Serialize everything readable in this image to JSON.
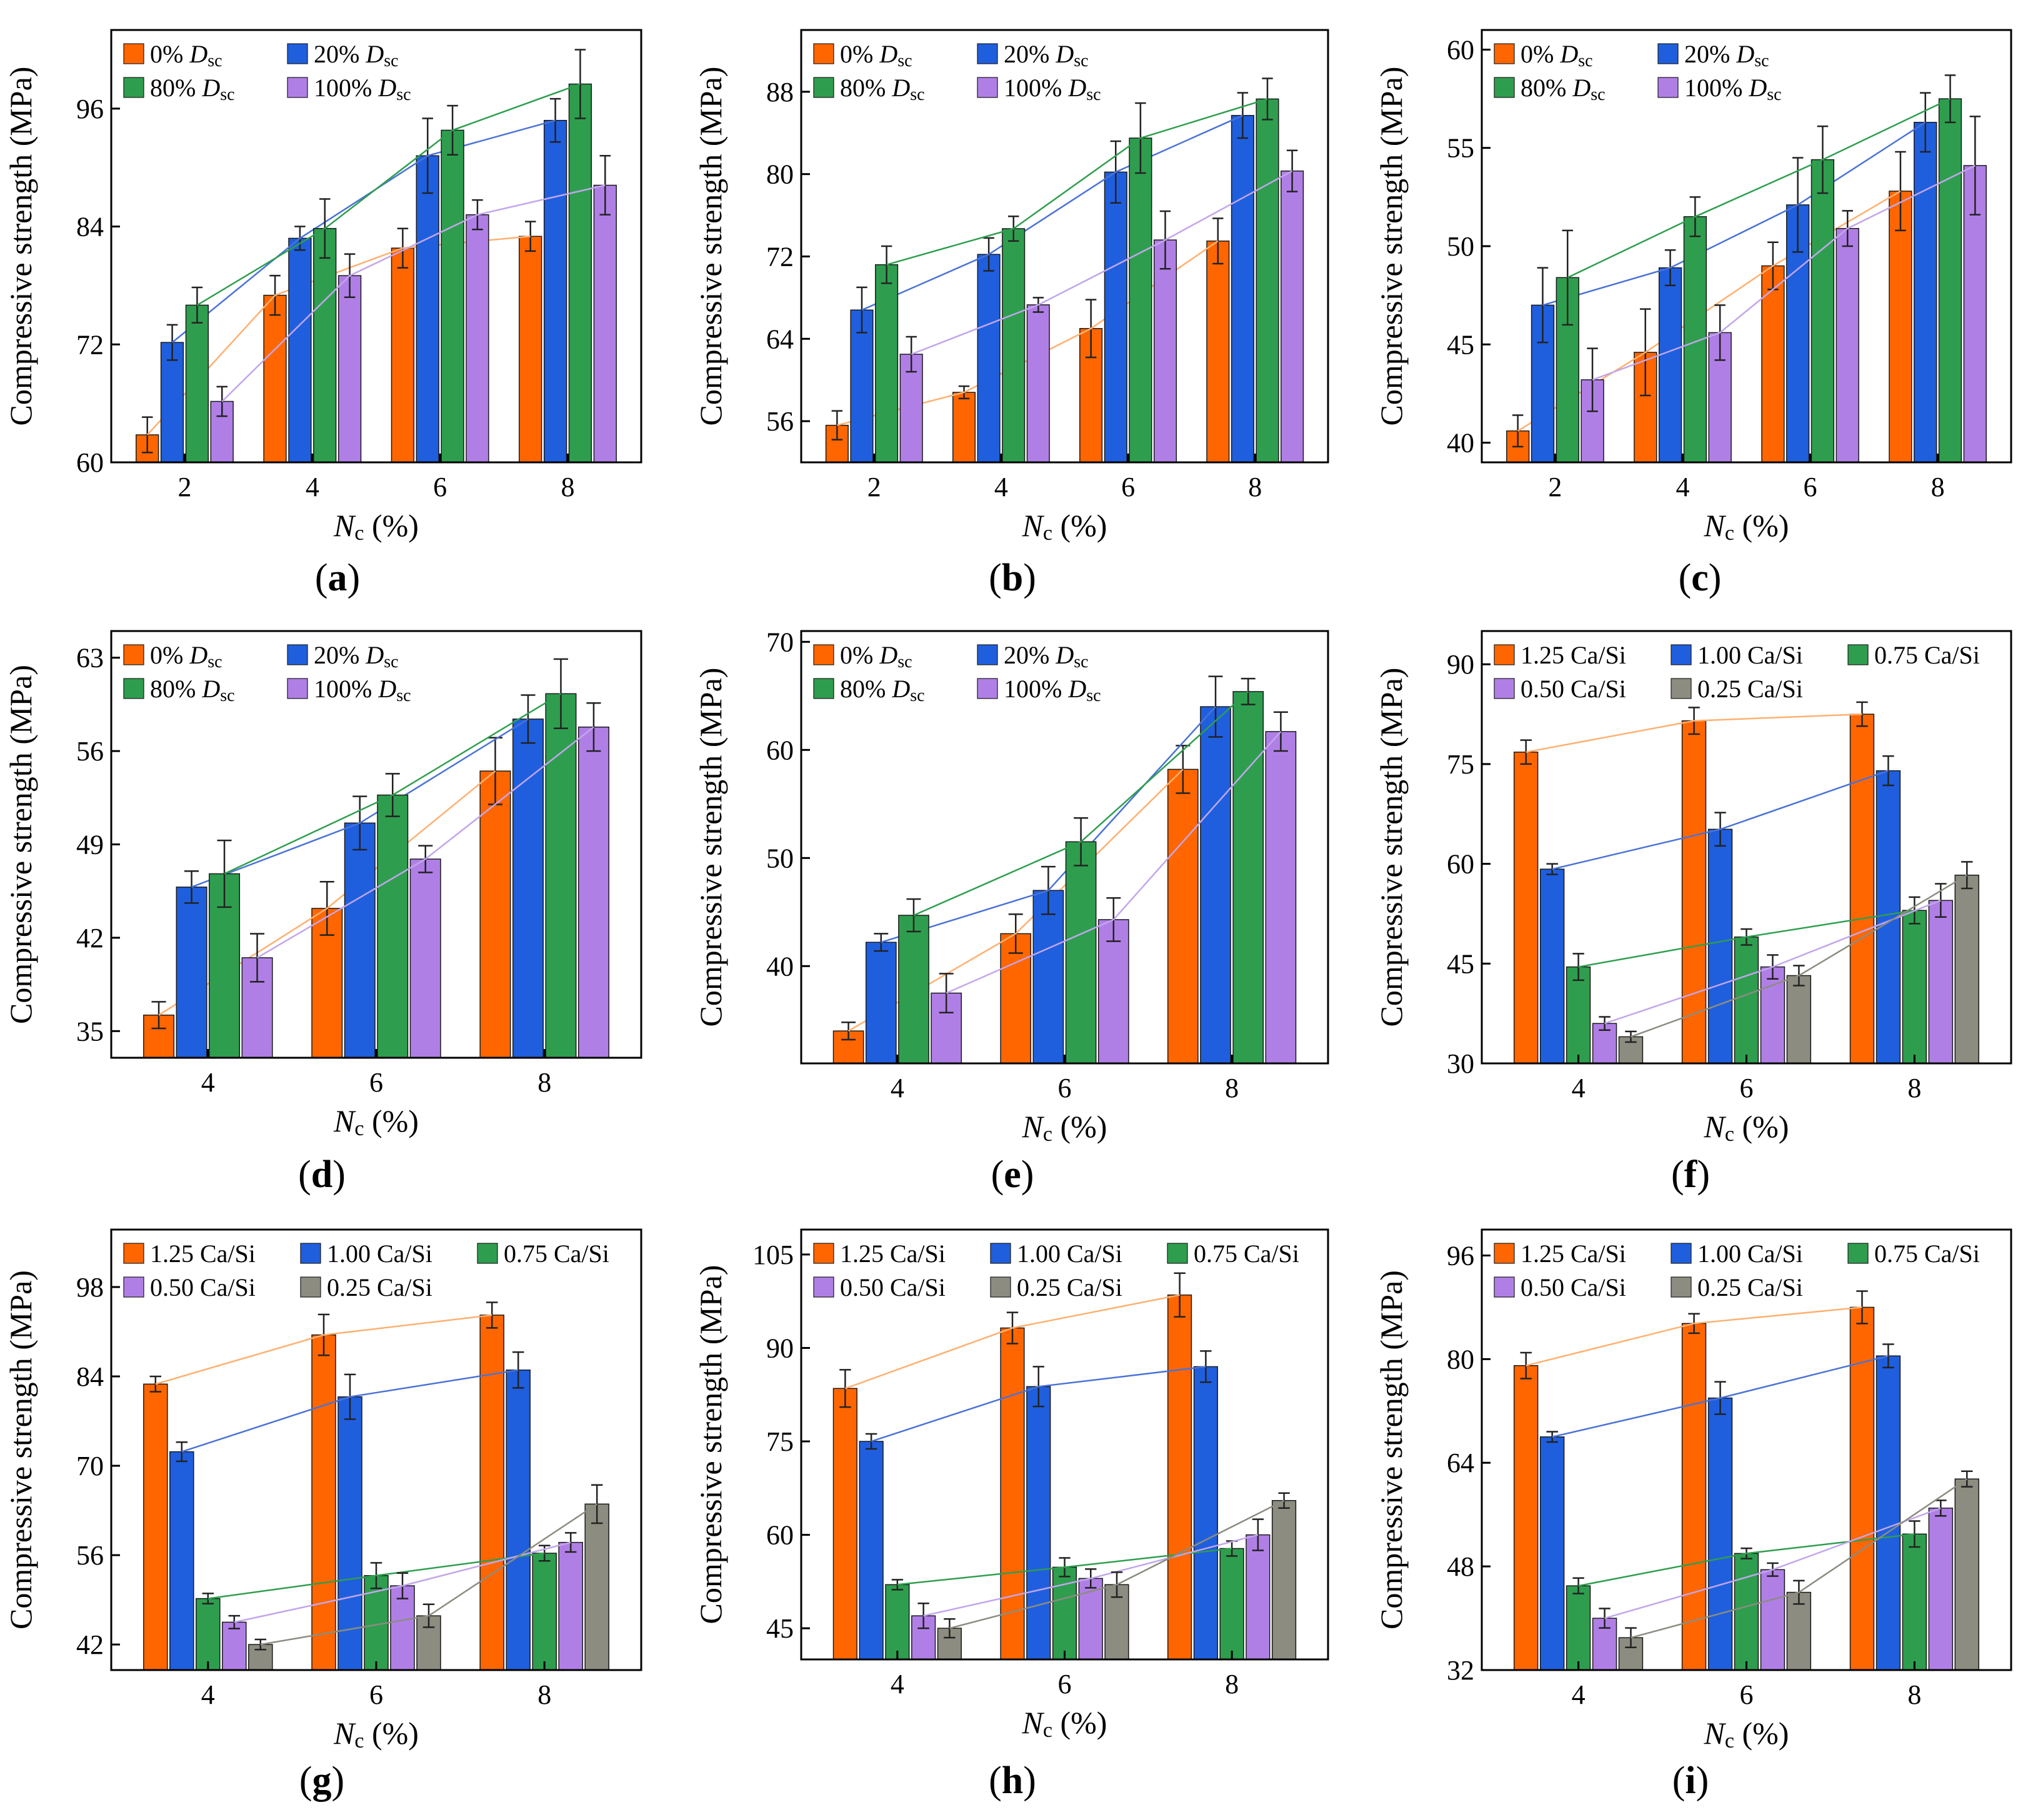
{
  "figure": {
    "colors": {
      "orange": "#ff6600",
      "blue": "#1f5fde",
      "green": "#2e9e4e",
      "purple": "#b07fe6",
      "gray": "#8c8c80",
      "line_orange": "#ffb070",
      "line_blue": "#4a72d6",
      "line_green": "#2e9e4e",
      "line_purple": "#c2a6ec",
      "line_gray": "#8c8c80"
    }
  },
  "chart_data": [
    {
      "panel_label": "(a)",
      "type": "bar",
      "ylabel": "Compressive strength (MPa)",
      "xlabel_main": "N",
      "xlabel_sub": "c",
      "xlabel_rest": " (%)",
      "categories": [
        "2",
        "4",
        "6",
        "8"
      ],
      "ylim": [
        60,
        104
      ],
      "yticks": [
        "60",
        "72",
        "84",
        "96"
      ],
      "legend_cols": 2,
      "series": [
        {
          "name": "0% D",
          "name_sub": "sc",
          "color_key": "orange",
          "line_key": "line_orange",
          "values": [
            62.8,
            77.0,
            81.8,
            83.0
          ],
          "errors": [
            1.8,
            2.0,
            2.0,
            1.5
          ]
        },
        {
          "name": "20% D",
          "name_sub": "sc",
          "color_key": "blue",
          "line_key": "line_blue",
          "values": [
            72.2,
            82.8,
            91.2,
            94.8
          ],
          "errors": [
            1.8,
            1.2,
            3.8,
            2.2
          ]
        },
        {
          "name": "80% D",
          "name_sub": "sc",
          "color_key": "green",
          "line_key": "line_green",
          "values": [
            76.0,
            83.8,
            93.8,
            98.5
          ],
          "errors": [
            1.8,
            3.0,
            2.5,
            3.5
          ]
        },
        {
          "name": "100% D",
          "name_sub": "sc",
          "color_key": "purple",
          "line_key": "line_purple",
          "values": [
            66.2,
            79.0,
            85.2,
            88.2
          ],
          "errors": [
            1.5,
            2.2,
            1.5,
            3.0
          ]
        }
      ]
    },
    {
      "panel_label": "(b)",
      "type": "bar",
      "ylabel": "Compressive strength (MPa)",
      "xlabel_main": "N",
      "xlabel_sub": "c",
      "xlabel_rest": " (%)",
      "categories": [
        "2",
        "4",
        "6",
        "8"
      ],
      "ylim": [
        52,
        94
      ],
      "yticks": [
        "56",
        "64",
        "72",
        "80",
        "88"
      ],
      "legend_cols": 2,
      "series": [
        {
          "name": "0% D",
          "name_sub": "sc",
          "color_key": "orange",
          "line_key": "line_orange",
          "values": [
            55.6,
            58.8,
            65.0,
            73.5
          ],
          "errors": [
            1.4,
            0.6,
            2.8,
            2.2
          ]
        },
        {
          "name": "20% D",
          "name_sub": "sc",
          "color_key": "blue",
          "line_key": "line_blue",
          "values": [
            66.8,
            72.2,
            80.2,
            85.7
          ],
          "errors": [
            2.2,
            1.6,
            3.0,
            2.2
          ]
        },
        {
          "name": "80% D",
          "name_sub": "sc",
          "color_key": "green",
          "line_key": "line_green",
          "values": [
            71.2,
            74.7,
            83.5,
            87.3
          ],
          "errors": [
            1.8,
            1.2,
            3.4,
            2.0
          ]
        },
        {
          "name": "100% D",
          "name_sub": "sc",
          "color_key": "purple",
          "line_key": "line_purple",
          "values": [
            62.5,
            67.3,
            73.6,
            80.3
          ],
          "errors": [
            1.7,
            0.7,
            2.8,
            2.0
          ]
        }
      ]
    },
    {
      "panel_label": "(c)",
      "type": "bar",
      "ylabel": "Compressive strength (MPa)",
      "xlabel_main": "N",
      "xlabel_sub": "c",
      "xlabel_rest": " (%)",
      "categories": [
        "2",
        "4",
        "6",
        "8"
      ],
      "ylim": [
        39,
        61
      ],
      "yticks": [
        "40",
        "45",
        "50",
        "55",
        "60"
      ],
      "legend_cols": 2,
      "series": [
        {
          "name": "0% D",
          "name_sub": "sc",
          "color_key": "orange",
          "line_key": "line_orange",
          "values": [
            40.6,
            44.6,
            49.0,
            52.8
          ],
          "errors": [
            0.8,
            2.2,
            1.2,
            2.0
          ]
        },
        {
          "name": "20% D",
          "name_sub": "sc",
          "color_key": "blue",
          "line_key": "line_blue",
          "values": [
            47.0,
            48.9,
            52.1,
            56.3
          ],
          "errors": [
            1.9,
            0.9,
            2.4,
            1.5
          ]
        },
        {
          "name": "80% D",
          "name_sub": "sc",
          "color_key": "green",
          "line_key": "line_green",
          "values": [
            48.4,
            51.5,
            54.4,
            57.5
          ],
          "errors": [
            2.4,
            1.0,
            1.7,
            1.2
          ]
        },
        {
          "name": "100% D",
          "name_sub": "sc",
          "color_key": "purple",
          "line_key": "line_purple",
          "values": [
            43.2,
            45.6,
            50.9,
            54.1
          ],
          "errors": [
            1.6,
            1.4,
            0.9,
            2.5
          ]
        }
      ]
    },
    {
      "panel_label": "(d)",
      "type": "bar",
      "ylabel": "Compressive strength (MPa)",
      "xlabel_main": "N",
      "xlabel_sub": "c",
      "xlabel_rest": " (%)",
      "categories": [
        "4",
        "6",
        "8"
      ],
      "ylim": [
        33,
        65
      ],
      "yticks": [
        "35",
        "42",
        "49",
        "56",
        "63"
      ],
      "legend_cols": 2,
      "series": [
        {
          "name": "0% D",
          "name_sub": "sc",
          "color_key": "orange",
          "line_key": "line_orange",
          "values": [
            36.2,
            44.2,
            54.5
          ],
          "errors": [
            1.0,
            2.0,
            2.5
          ]
        },
        {
          "name": "20% D",
          "name_sub": "sc",
          "color_key": "blue",
          "line_key": "line_blue",
          "values": [
            45.8,
            50.6,
            58.4
          ],
          "errors": [
            1.2,
            2.0,
            1.8
          ]
        },
        {
          "name": "80% D",
          "name_sub": "sc",
          "color_key": "green",
          "line_key": "line_green",
          "values": [
            46.8,
            52.7,
            60.3
          ],
          "errors": [
            2.5,
            1.6,
            2.6
          ]
        },
        {
          "name": "100% D",
          "name_sub": "sc",
          "color_key": "purple",
          "line_key": "line_purple",
          "values": [
            40.5,
            47.9,
            57.8
          ],
          "errors": [
            1.8,
            1.0,
            1.8
          ]
        }
      ]
    },
    {
      "panel_label": "(e)",
      "type": "bar",
      "ylabel": "Compressive strength (MPa)",
      "xlabel_main": "N",
      "xlabel_sub": "c",
      "xlabel_rest": " (%)",
      "categories": [
        "4",
        "6",
        "8"
      ],
      "ylim": [
        31,
        71
      ],
      "yticks": [
        "40",
        "50",
        "60",
        "70"
      ],
      "legend_cols": 2,
      "series": [
        {
          "name": "0% D",
          "name_sub": "sc",
          "color_key": "orange",
          "line_key": "line_orange",
          "values": [
            34.0,
            43.0,
            58.2
          ],
          "errors": [
            0.8,
            1.8,
            2.2
          ]
        },
        {
          "name": "20% D",
          "name_sub": "sc",
          "color_key": "blue",
          "line_key": "line_blue",
          "values": [
            42.2,
            47.0,
            64.0
          ],
          "errors": [
            0.8,
            2.2,
            2.8
          ]
        },
        {
          "name": "80% D",
          "name_sub": "sc",
          "color_key": "green",
          "line_key": "line_green",
          "values": [
            44.7,
            51.5,
            65.4
          ],
          "errors": [
            1.5,
            2.2,
            1.2
          ]
        },
        {
          "name": "100% D",
          "name_sub": "sc",
          "color_key": "purple",
          "line_key": "line_purple",
          "values": [
            37.5,
            44.3,
            61.7
          ],
          "errors": [
            1.8,
            2.0,
            1.8
          ]
        }
      ]
    },
    {
      "panel_label": "(f)",
      "type": "bar",
      "ylabel": "Compressive strength (MPa)",
      "xlabel_main": "N",
      "xlabel_sub": "c",
      "xlabel_rest": " (%)",
      "categories": [
        "4",
        "6",
        "8"
      ],
      "ylim": [
        30,
        95
      ],
      "yticks": [
        "30",
        "45",
        "60",
        "75",
        "90"
      ],
      "legend_cols": 3,
      "series": [
        {
          "name": "1.25 Ca/Si",
          "name_sub": "",
          "color_key": "orange",
          "line_key": "line_orange",
          "values": [
            76.8,
            81.5,
            82.5
          ],
          "errors": [
            1.8,
            2.0,
            1.8
          ]
        },
        {
          "name": "1.00 Ca/Si",
          "name_sub": "",
          "color_key": "blue",
          "line_key": "line_blue",
          "values": [
            59.2,
            65.2,
            74.0
          ],
          "errors": [
            0.8,
            2.5,
            2.2
          ]
        },
        {
          "name": "0.75 Ca/Si",
          "name_sub": "",
          "color_key": "green",
          "line_key": "line_green",
          "values": [
            44.5,
            49.0,
            53.0
          ],
          "errors": [
            2.0,
            1.2,
            2.0
          ]
        },
        {
          "name": "0.50 Ca/Si",
          "name_sub": "",
          "color_key": "purple",
          "line_key": "line_purple",
          "values": [
            36.0,
            44.5,
            54.5
          ],
          "errors": [
            1.0,
            1.8,
            2.5
          ]
        },
        {
          "name": "0.25 Ca/Si",
          "name_sub": "",
          "color_key": "gray",
          "line_key": "line_gray",
          "values": [
            34.0,
            43.2,
            58.3
          ],
          "errors": [
            0.8,
            1.5,
            2.0
          ]
        }
      ]
    },
    {
      "panel_label": "(g)",
      "type": "bar",
      "ylabel": "Compressive strength (MPa)",
      "xlabel_main": "N",
      "xlabel_sub": "c",
      "xlabel_rest": " (%)",
      "categories": [
        "4",
        "6",
        "8"
      ],
      "ylim": [
        38,
        107
      ],
      "yticks": [
        "42",
        "56",
        "70",
        "84",
        "98"
      ],
      "legend_cols": 3,
      "series": [
        {
          "name": "1.25 Ca/Si",
          "name_sub": "",
          "color_key": "orange",
          "line_key": "line_orange",
          "values": [
            82.8,
            90.5,
            93.6
          ],
          "errors": [
            1.2,
            3.2,
            2.0
          ]
        },
        {
          "name": "1.00 Ca/Si",
          "name_sub": "",
          "color_key": "blue",
          "line_key": "line_blue",
          "values": [
            72.2,
            80.8,
            85.0
          ],
          "errors": [
            1.5,
            3.5,
            2.8
          ]
        },
        {
          "name": "0.75 Ca/Si",
          "name_sub": "",
          "color_key": "green",
          "line_key": "line_green",
          "values": [
            49.2,
            52.8,
            56.3
          ],
          "errors": [
            0.8,
            2.0,
            1.2
          ]
        },
        {
          "name": "0.50 Ca/Si",
          "name_sub": "",
          "color_key": "purple",
          "line_key": "line_purple",
          "values": [
            45.5,
            51.2,
            58.0
          ],
          "errors": [
            1.0,
            2.0,
            1.5
          ]
        },
        {
          "name": "0.25 Ca/Si",
          "name_sub": "",
          "color_key": "gray",
          "line_key": "line_gray",
          "values": [
            42.0,
            46.5,
            64.0
          ],
          "errors": [
            0.8,
            1.8,
            3.0
          ]
        }
      ]
    },
    {
      "panel_label": "(h)",
      "type": "bar",
      "ylabel": "Compressive strength (MPa)",
      "xlabel_main": "N",
      "xlabel_sub": "c",
      "xlabel_rest": " (%)",
      "categories": [
        "4",
        "6",
        "8"
      ],
      "ylim": [
        40,
        109
      ],
      "yticks": [
        "45",
        "60",
        "75",
        "90",
        "105"
      ],
      "legend_cols": 3,
      "series": [
        {
          "name": "1.25 Ca/Si",
          "name_sub": "",
          "color_key": "orange",
          "line_key": "line_orange",
          "values": [
            83.5,
            93.2,
            98.5
          ],
          "errors": [
            3.0,
            2.5,
            3.5
          ]
        },
        {
          "name": "1.00 Ca/Si",
          "name_sub": "",
          "color_key": "blue",
          "line_key": "line_blue",
          "values": [
            75.0,
            83.8,
            87.0
          ],
          "errors": [
            1.2,
            3.2,
            2.5
          ]
        },
        {
          "name": "0.75 Ca/Si",
          "name_sub": "",
          "color_key": "green",
          "line_key": "line_green",
          "values": [
            52.0,
            54.8,
            57.8
          ],
          "errors": [
            0.8,
            1.5,
            1.2
          ]
        },
        {
          "name": "0.50 Ca/Si",
          "name_sub": "",
          "color_key": "purple",
          "line_key": "line_purple",
          "values": [
            47.0,
            53.0,
            60.0
          ],
          "errors": [
            2.0,
            1.5,
            2.5
          ]
        },
        {
          "name": "0.25 Ca/Si",
          "name_sub": "",
          "color_key": "gray",
          "line_key": "line_gray",
          "values": [
            45.0,
            52.0,
            65.5
          ],
          "errors": [
            1.5,
            2.0,
            1.2
          ]
        }
      ]
    },
    {
      "panel_label": "(i)",
      "type": "bar",
      "ylabel": "Compressive strength (MPa)",
      "xlabel_main": "N",
      "xlabel_sub": "c",
      "xlabel_rest": " (%)",
      "categories": [
        "4",
        "6",
        "8"
      ],
      "ylim": [
        32,
        100
      ],
      "yticks": [
        "32",
        "48",
        "64",
        "80",
        "96"
      ],
      "legend_cols": 3,
      "series": [
        {
          "name": "1.25 Ca/Si",
          "name_sub": "",
          "color_key": "orange",
          "line_key": "line_orange",
          "values": [
            79.0,
            85.5,
            88.0
          ],
          "errors": [
            2.0,
            1.5,
            2.5
          ]
        },
        {
          "name": "1.00 Ca/Si",
          "name_sub": "",
          "color_key": "blue",
          "line_key": "line_blue",
          "values": [
            68.0,
            74.0,
            80.5
          ],
          "errors": [
            0.8,
            2.5,
            1.8
          ]
        },
        {
          "name": "0.75 Ca/Si",
          "name_sub": "",
          "color_key": "green",
          "line_key": "line_green",
          "values": [
            45.0,
            50.0,
            53.0
          ],
          "errors": [
            1.2,
            0.8,
            2.0
          ]
        },
        {
          "name": "0.50 Ca/Si",
          "name_sub": "",
          "color_key": "purple",
          "line_key": "line_purple",
          "values": [
            40.0,
            47.5,
            57.0
          ],
          "errors": [
            1.5,
            1.0,
            1.2
          ]
        },
        {
          "name": "0.25 Ca/Si",
          "name_sub": "",
          "color_key": "gray",
          "line_key": "line_gray",
          "values": [
            37.0,
            44.0,
            61.5
          ],
          "errors": [
            1.5,
            1.8,
            1.2
          ]
        }
      ]
    }
  ]
}
